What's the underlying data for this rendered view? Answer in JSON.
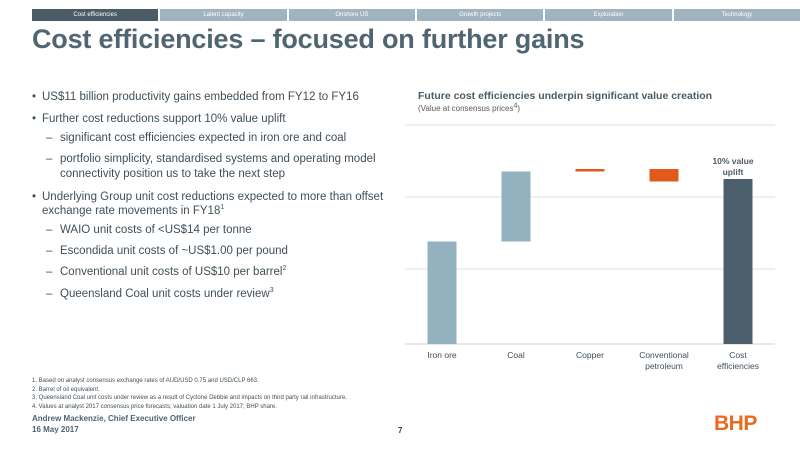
{
  "nav": {
    "tabs": [
      "Cost efficiencies",
      "Latent capacity",
      "Onshore US",
      "Growth projects",
      "Exploration",
      "Technology"
    ]
  },
  "title": "Cost efficiencies – focused on further gains",
  "bullets": {
    "b1": "US$11 billion productivity gains embedded from FY12 to FY16",
    "b2": "Further cost reductions support 10% value uplift",
    "b2a": "significant cost efficiencies expected in iron ore and coal",
    "b2b": "portfolio simplicity, standardised systems and operating model connectivity position us to take the next step",
    "b3_text": "Underlying Group unit cost reductions expected to more than offset exchange rate movements in FY18",
    "b3_sup": "1",
    "b3a": "WAIO unit costs of <US$14 per tonne",
    "b3b": "Escondida unit costs of ~US$1.00 per pound",
    "b3c_text": "Conventional unit costs of US$10 per barrel",
    "b3c_sup": "2",
    "b3d_text": "Queensland Coal unit costs under review",
    "b3d_sup": "3"
  },
  "chart": {
    "title": "Future cost efficiencies underpin significant value creation",
    "subtitle": "(Value at consensus prices",
    "subtitle_sup": "4",
    "subtitle_end": ")"
  },
  "chart_data": {
    "type": "waterfall",
    "categories": [
      "Iron ore",
      "Coal",
      "Copper",
      "Conventional petroleum",
      "Cost efficiencies"
    ],
    "bars": [
      {
        "base": 0,
        "value": 41,
        "color": "#93b2c0"
      },
      {
        "base": 41,
        "value": 28,
        "color": "#93b2c0"
      },
      {
        "base": 69,
        "value": 1,
        "color": "#e2591c"
      },
      {
        "base": 65,
        "value": 5,
        "color": "#e2591c"
      },
      {
        "base": 0,
        "value": 66,
        "color": "#4a5f6b"
      }
    ],
    "annotation": {
      "text_line1": "10% value",
      "text_line2": "uplift"
    },
    "grid": true
  },
  "footnotes": {
    "f1": "1.  Based on analyst consensus exchange rates of AUD/USD 0.75 and USD/CLP 663.",
    "f2": "2.  Barrel of oil equivalent.",
    "f3": "3.  Queensland Coal unit costs under review as a result of Cyclone Debbie and impacts on third party rail infrastructure.",
    "f4": "4.  Values at analyst 2017 consensus price forecasts; valuation date 1 July 2017; BHP share."
  },
  "footer": {
    "presenter": "Andrew Mackenzie, Chief Executive Officer",
    "date": "16 May 2017",
    "page": "7",
    "logo": "BHP"
  }
}
